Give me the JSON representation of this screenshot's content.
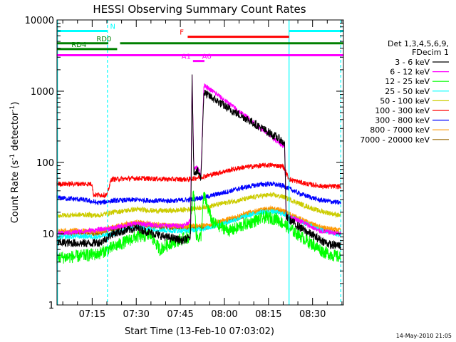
{
  "chart_data": {
    "type": "line",
    "title": "HESSI Observing Summary Count Rates",
    "xlabel": "Start Time (13-Feb-10 07:03:02)",
    "ylabel_main": "Count Rate (s",
    "ylabel_sup1": "-1",
    "ylabel_mid": " detector",
    "ylabel_sup2": "-1",
    "ylabel_end": ")",
    "x_ticks": [
      "07:15",
      "07:30",
      "07:45",
      "08:00",
      "08:15",
      "08:30"
    ],
    "x_tick_minutes": [
      15,
      30,
      45,
      60,
      75,
      90
    ],
    "x_range_minutes": [
      3.03,
      100.5
    ],
    "y_scale": "log",
    "y_ticks": [
      "1",
      "10",
      "100",
      "1000",
      "10000"
    ],
    "y_tick_values": [
      1,
      10,
      100,
      1000,
      10000
    ],
    "ylim": [
      1,
      10000
    ],
    "legend_header": [
      "Det 1,3,4,5,6,9,",
      "FDecim 1"
    ],
    "legend_position": "right",
    "series": [
      {
        "name": "3 - 6 keV",
        "color": "#000000",
        "points": [
          [
            3.0,
            7.5
          ],
          [
            8,
            7.4
          ],
          [
            14,
            7.3
          ],
          [
            18,
            7.6
          ],
          [
            22,
            10
          ],
          [
            30,
            12
          ],
          [
            36,
            10
          ],
          [
            40,
            9
          ],
          [
            46,
            8
          ],
          [
            48.5,
            9
          ],
          [
            49,
            1500
          ],
          [
            49.6,
            75
          ],
          [
            51,
            75
          ],
          [
            52,
            60
          ],
          [
            53,
            950
          ],
          [
            56,
            800
          ],
          [
            62,
            550
          ],
          [
            68,
            400
          ],
          [
            74,
            280
          ],
          [
            79,
            210
          ],
          [
            80.5,
            180
          ],
          [
            81,
            17
          ],
          [
            86,
            12
          ],
          [
            92,
            8.5
          ],
          [
            96,
            7
          ],
          [
            99.6,
            6.8
          ]
        ]
      },
      {
        "name": "6 - 12 keV",
        "color": "#ff00ff",
        "points": [
          [
            3.0,
            10
          ],
          [
            14,
            11
          ],
          [
            22,
            12
          ],
          [
            30,
            14
          ],
          [
            38,
            13
          ],
          [
            46,
            13
          ],
          [
            48.5,
            15
          ],
          [
            49,
            1700
          ],
          [
            49.6,
            85
          ],
          [
            51,
            85
          ],
          [
            52,
            65
          ],
          [
            53,
            1200
          ],
          [
            56,
            1000
          ],
          [
            62,
            650
          ],
          [
            68,
            420
          ],
          [
            74,
            270
          ],
          [
            79,
            180
          ],
          [
            80.5,
            170
          ],
          [
            81,
            18
          ],
          [
            86,
            15
          ],
          [
            92,
            11
          ],
          [
            99.6,
            10
          ]
        ]
      },
      {
        "name": "12 - 25 keV",
        "color": "#00ff00",
        "points": [
          [
            3.0,
            4.6
          ],
          [
            10,
            4.8
          ],
          [
            17,
            5.2
          ],
          [
            24,
            7
          ],
          [
            30,
            9
          ],
          [
            35,
            9.5
          ],
          [
            38,
            6
          ],
          [
            42,
            7.5
          ],
          [
            48,
            9
          ],
          [
            49.5,
            40
          ],
          [
            50.5,
            9
          ],
          [
            52,
            9
          ],
          [
            53,
            35
          ],
          [
            56,
            14
          ],
          [
            62,
            11
          ],
          [
            68,
            14
          ],
          [
            74,
            17
          ],
          [
            78,
            16
          ],
          [
            82,
            12
          ],
          [
            88,
            8
          ],
          [
            94,
            5.5
          ],
          [
            99.6,
            4.6
          ]
        ]
      },
      {
        "name": "25 - 50 keV",
        "color": "#00ffff",
        "points": [
          [
            3.0,
            9
          ],
          [
            12,
            9.2
          ],
          [
            17,
            9
          ],
          [
            22,
            10
          ],
          [
            30,
            12.5
          ],
          [
            36,
            11.5
          ],
          [
            42,
            11
          ],
          [
            48,
            11
          ],
          [
            54,
            12
          ],
          [
            60,
            14
          ],
          [
            66,
            17
          ],
          [
            72,
            20
          ],
          [
            76,
            20.5
          ],
          [
            80,
            19
          ],
          [
            86,
            15
          ],
          [
            92,
            11.5
          ],
          [
            99.6,
            9.5
          ]
        ]
      },
      {
        "name": "50 - 100 keV",
        "color": "#cccc00",
        "points": [
          [
            3.0,
            18
          ],
          [
            12,
            18.5
          ],
          [
            17,
            18
          ],
          [
            22,
            20
          ],
          [
            30,
            22
          ],
          [
            36,
            21
          ],
          [
            42,
            21
          ],
          [
            48,
            22
          ],
          [
            54,
            24
          ],
          [
            60,
            27
          ],
          [
            66,
            30
          ],
          [
            72,
            34
          ],
          [
            76,
            35
          ],
          [
            80,
            33
          ],
          [
            86,
            26
          ],
          [
            92,
            21
          ],
          [
            99.6,
            18
          ]
        ]
      },
      {
        "name": "100 - 300 keV",
        "color": "#ff0000",
        "points": [
          [
            3.0,
            50
          ],
          [
            10,
            50
          ],
          [
            15,
            50
          ],
          [
            15.4,
            35
          ],
          [
            20,
            35
          ],
          [
            21.5,
            58
          ],
          [
            30,
            60
          ],
          [
            36,
            59
          ],
          [
            42,
            58
          ],
          [
            48,
            58
          ],
          [
            54,
            65
          ],
          [
            60,
            75
          ],
          [
            66,
            85
          ],
          [
            72,
            90
          ],
          [
            76,
            92
          ],
          [
            80,
            88
          ],
          [
            82,
            58
          ],
          [
            88,
            50
          ],
          [
            94,
            46
          ],
          [
            99.6,
            46
          ]
        ]
      },
      {
        "name": "300 - 800 keV",
        "color": "#0000ff",
        "points": [
          [
            3.0,
            32
          ],
          [
            12,
            30
          ],
          [
            17,
            27
          ],
          [
            22,
            29
          ],
          [
            30,
            30
          ],
          [
            36,
            29
          ],
          [
            42,
            29
          ],
          [
            48,
            30
          ],
          [
            54,
            33
          ],
          [
            60,
            38
          ],
          [
            66,
            44
          ],
          [
            72,
            49
          ],
          [
            76,
            50
          ],
          [
            80,
            47
          ],
          [
            86,
            36
          ],
          [
            92,
            30
          ],
          [
            99.6,
            27
          ]
        ]
      },
      {
        "name": "800 - 7000 keV",
        "color": "#ff9900",
        "points": [
          [
            3.0,
            11
          ],
          [
            12,
            11
          ],
          [
            17,
            10.5
          ],
          [
            22,
            12.5
          ],
          [
            30,
            14.5
          ],
          [
            36,
            13.5
          ],
          [
            42,
            13
          ],
          [
            48,
            12.8
          ],
          [
            54,
            13
          ],
          [
            60,
            15.5
          ],
          [
            66,
            18.5
          ],
          [
            72,
            21.5
          ],
          [
            76,
            22.5
          ],
          [
            80,
            21
          ],
          [
            86,
            16
          ],
          [
            92,
            12.5
          ],
          [
            99.6,
            11
          ]
        ]
      },
      {
        "name": "7000 - 20000 keV",
        "color": "#996600",
        "points": [
          [
            3.0,
            10
          ],
          [
            12,
            10.2
          ],
          [
            17,
            10
          ],
          [
            22,
            11.5
          ],
          [
            30,
            13.5
          ],
          [
            36,
            12.5
          ],
          [
            42,
            12.2
          ],
          [
            48,
            12
          ],
          [
            54,
            12.2
          ],
          [
            60,
            14.5
          ],
          [
            66,
            17.5
          ],
          [
            72,
            20.5
          ],
          [
            76,
            21.5
          ],
          [
            80,
            20
          ],
          [
            86,
            15
          ],
          [
            92,
            11.5
          ],
          [
            99.6,
            10
          ]
        ]
      }
    ],
    "flag_bars": [
      {
        "label": "N",
        "color": "#00ffff",
        "level": 7000,
        "segments": [
          [
            3.0,
            20.2
          ],
          [
            82,
            100.5
          ]
        ],
        "label_at": 22
      },
      {
        "label": "F",
        "color": "#ff0000",
        "level": 5800,
        "segments": [
          [
            47.5,
            82
          ]
        ],
        "label_at": 45.5
      },
      {
        "label": "RD0",
        "color": "#008000",
        "level": 4700,
        "segments": [
          [
            3.0,
            20.5
          ],
          [
            24.5,
            100.5
          ]
        ],
        "label_at": 19
      },
      {
        "label": "RD4",
        "color": "#008000",
        "level": 3900,
        "segments": [
          [
            3.0,
            23.5
          ]
        ],
        "label_at": 10.5
      },
      {
        "label": "",
        "color": "#ff00ff",
        "level": 3200,
        "segments": [
          [
            3.0,
            100.5
          ]
        ],
        "label_at": 0
      },
      {
        "label": "A1",
        "color": "#ff00ff",
        "level": 2650,
        "segments": [
          [
            49.3,
            53.2
          ]
        ],
        "label_at": 47
      },
      {
        "label": "A0",
        "color": "#ff00ff",
        "level": 2650,
        "segments": [],
        "label_at": 54
      }
    ],
    "vlines": [
      {
        "color": "#00ffff",
        "style": "solid",
        "x": 3.2
      },
      {
        "color": "#00ffff",
        "style": "dashed",
        "x": 20.2
      },
      {
        "color": "#00ffff",
        "style": "solid",
        "x": 82
      },
      {
        "color": "#00ffff",
        "style": "dashed",
        "x": 99.6
      }
    ]
  },
  "footer": {
    "timestamp": "14-May-2010 21:05"
  }
}
